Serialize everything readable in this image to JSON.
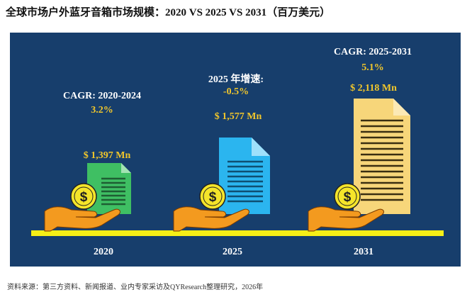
{
  "title": "全球市场户外蓝牙音箱市场规模：2020 VS 2025 VS 2031（百万美元）",
  "source": "资料来源：第三方资料、新闻报道、业内专家采访及QYResearch整理研究，2026年",
  "colors": {
    "panel": "#173e6c",
    "baseline": "#f7ef16",
    "gold_text": "#f2c72b",
    "doc_2020": "#3fbf63",
    "doc_2025": "#2bb5ef",
    "doc_2031": "#f7d67a",
    "hand": "#f39a1f",
    "coin": "#f5e52a"
  },
  "chart_data": {
    "type": "bar",
    "categories": [
      "2020",
      "2025",
      "2031"
    ],
    "values": [
      1397,
      1577,
      2118
    ],
    "value_labels": [
      "$ 1,397 Mn",
      "$ 1,577 Mn",
      "$ 2,118 Mn"
    ],
    "annotations": [
      {
        "label": "CAGR: 2020-2024",
        "value": "3.2%"
      },
      {
        "label": "2025 年增速:",
        "value": "-0.5%"
      },
      {
        "label": "CAGR: 2025-2031",
        "value": "5.1%"
      }
    ]
  }
}
